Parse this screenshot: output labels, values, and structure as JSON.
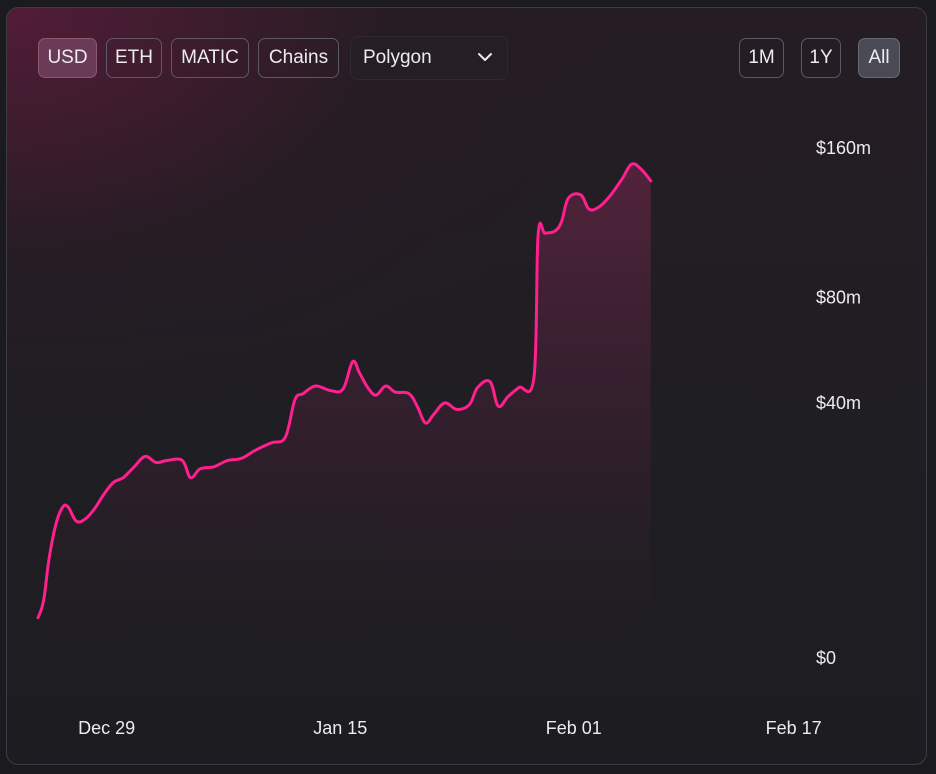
{
  "controls": {
    "currency_buttons": [
      {
        "label": "USD",
        "active": true
      },
      {
        "label": "ETH",
        "active": false
      },
      {
        "label": "MATIC",
        "active": false
      },
      {
        "label": "Chains",
        "active": false
      }
    ],
    "chain_dropdown": {
      "value": "Polygon",
      "icon": "chevron-down-icon"
    },
    "range_buttons": [
      {
        "label": "1M",
        "active": false
      },
      {
        "label": "1Y",
        "active": false
      },
      {
        "label": "All",
        "active": true
      }
    ]
  },
  "colors": {
    "line": "#ff1f8e",
    "active_currency": "#6b3a57",
    "active_range": "#4a4a54"
  },
  "chart_data": {
    "type": "area",
    "y_tick_labels": [
      "$0",
      "$40m",
      "$80m",
      "$160m"
    ],
    "y_tick_values": [
      0,
      40,
      80,
      160
    ],
    "y_scale": "sqrt",
    "x_tick_labels": [
      "Dec 29",
      "Jan 15",
      "Feb 01",
      "Feb 17"
    ],
    "x_tick_days": [
      0,
      17,
      34,
      50
    ],
    "x_range_days": [
      -5,
      50.9
    ],
    "series": [
      {
        "points": [
          [
            -5,
            1
          ],
          [
            -4.6,
            2
          ],
          [
            -4.2,
            6
          ],
          [
            -3.7,
            11
          ],
          [
            -3.2,
            14
          ],
          [
            -2.8,
            14
          ],
          [
            -2.2,
            11.5
          ],
          [
            -1.5,
            12
          ],
          [
            -0.8,
            14
          ],
          [
            -0.2,
            16.5
          ],
          [
            0.5,
            19
          ],
          [
            1.2,
            20
          ],
          [
            2,
            22.5
          ],
          [
            2.8,
            25
          ],
          [
            3.6,
            23.5
          ],
          [
            4.4,
            24
          ],
          [
            5.5,
            24
          ],
          [
            6.1,
            20
          ],
          [
            6.8,
            22
          ],
          [
            7.8,
            22.5
          ],
          [
            8.8,
            24
          ],
          [
            9.8,
            24.5
          ],
          [
            10.8,
            26.5
          ],
          [
            12,
            28.5
          ],
          [
            13,
            30
          ],
          [
            13.7,
            41
          ],
          [
            14.3,
            43
          ],
          [
            15.2,
            45.5
          ],
          [
            16.3,
            44
          ],
          [
            17.2,
            44.5
          ],
          [
            17.9,
            54
          ],
          [
            18.4,
            50
          ],
          [
            19,
            45
          ],
          [
            19.6,
            42.5
          ],
          [
            20.3,
            45.5
          ],
          [
            21,
            43.5
          ],
          [
            22,
            43
          ],
          [
            22.6,
            39
          ],
          [
            23.2,
            34
          ],
          [
            23.8,
            36.5
          ],
          [
            24.6,
            40
          ],
          [
            25.5,
            38
          ],
          [
            26.4,
            39.5
          ],
          [
            27,
            45
          ],
          [
            27.9,
            47
          ],
          [
            28.5,
            39
          ],
          [
            29.2,
            42
          ],
          [
            30,
            45
          ],
          [
            31.1,
            48.5
          ],
          [
            31.4,
            110
          ],
          [
            31.9,
            111
          ],
          [
            32.6,
            112
          ],
          [
            33.1,
            117
          ],
          [
            33.6,
            130
          ],
          [
            34.5,
            132
          ],
          [
            35.1,
            124
          ],
          [
            35.8,
            125
          ],
          [
            36.6,
            131
          ],
          [
            37.5,
            141
          ],
          [
            38.2,
            150
          ],
          [
            38.9,
            147
          ],
          [
            39.6,
            140
          ]
        ]
      }
    ]
  }
}
